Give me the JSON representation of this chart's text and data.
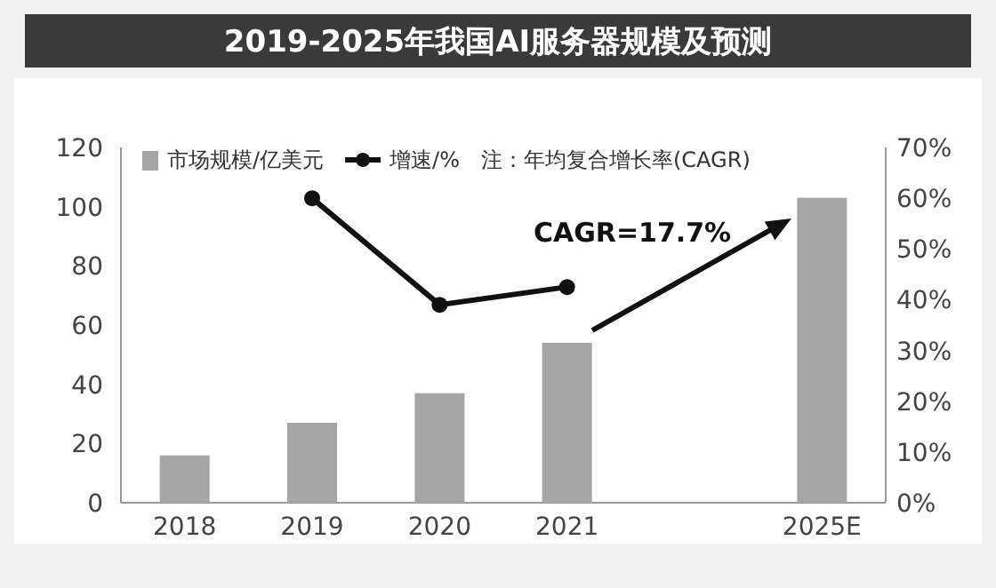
{
  "chart_data": {
    "type": "bar",
    "title": "2019-2025年我国AI服务器规模及预测",
    "categories": [
      "2018",
      "2019",
      "2020",
      "2021",
      null,
      "2025E"
    ],
    "series": [
      {
        "name": "市场规模/亿美元",
        "color": "#a6a6a6",
        "values": [
          16,
          27,
          37,
          54,
          null,
          103
        ]
      },
      {
        "name": "增速/%",
        "type": "line",
        "axis": "y2",
        "color": "#111111",
        "marker": "circle",
        "values": [
          null,
          60,
          39,
          42.5,
          null,
          null
        ]
      }
    ],
    "ylim": [
      0,
      120
    ],
    "yticks": [
      0,
      20,
      40,
      60,
      80,
      100,
      120
    ],
    "y2lim": [
      0,
      70
    ],
    "y2ticks": [
      {
        "value": 0,
        "label": "0%"
      },
      {
        "value": 10,
        "label": "10%"
      },
      {
        "value": 20,
        "label": "20%"
      },
      {
        "value": 30,
        "label": "30%"
      },
      {
        "value": 40,
        "label": "40%"
      },
      {
        "value": 50,
        "label": "50%"
      },
      {
        "value": 60,
        "label": "60%"
      },
      {
        "value": 70,
        "label": "70%"
      }
    ],
    "legend": "top",
    "annotations": [
      "注：年均复合增长率(CAGR)",
      "CAGR=17.7%"
    ]
  }
}
